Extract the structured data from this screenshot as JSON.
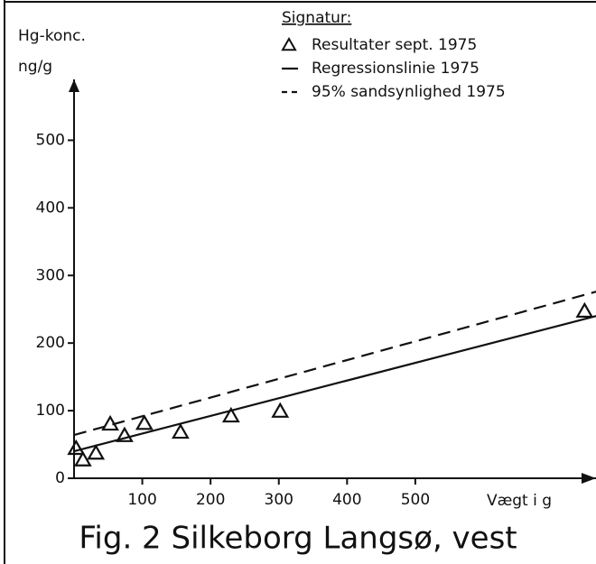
{
  "chart_data": {
    "type": "scatter",
    "title": "Fig. 2  Silkeborg Langsø, vest",
    "y_label": "Hg-konc.",
    "y_unit": "ng/g",
    "x_label": "Vægt i g",
    "legend_title": "Signatur:",
    "xlim": [
      0,
      770
    ],
    "ylim": [
      0,
      590
    ],
    "xticks": [
      100,
      200,
      300,
      400,
      500
    ],
    "yticks": [
      0,
      100,
      200,
      300,
      400,
      500
    ],
    "grid": false,
    "color": "#111111",
    "series": [
      {
        "name": "Resultater  sept. 1975",
        "style": "triangle",
        "x": [
          3,
          13,
          32,
          53,
          74,
          103,
          156,
          230,
          302,
          748
        ],
        "values": [
          44,
          27,
          37,
          80,
          63,
          81,
          68,
          92,
          99,
          247
        ]
      },
      {
        "name": "Regressionslinie 1975",
        "style": "solid",
        "x": [
          0,
          765
        ],
        "values": [
          40,
          240
        ]
      },
      {
        "name": "95% sandsynlighed 1975",
        "style": "dashed",
        "x": [
          0,
          765
        ],
        "values": [
          64,
          276
        ]
      }
    ]
  }
}
